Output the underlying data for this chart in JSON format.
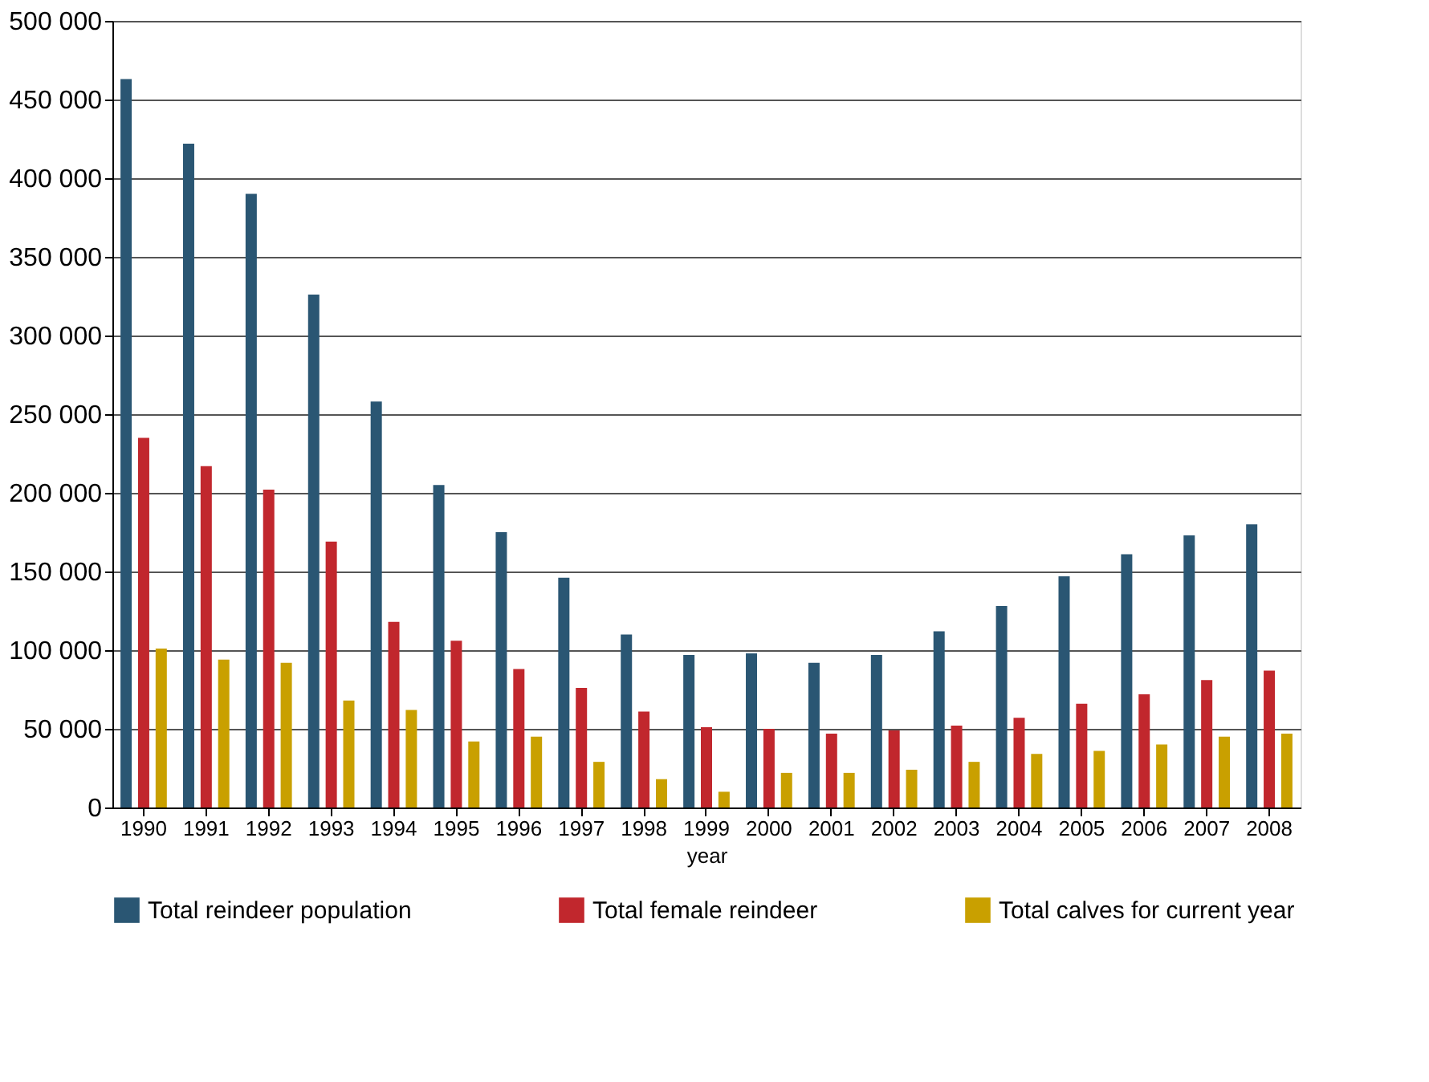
{
  "chart_data": {
    "type": "bar",
    "xlabel": "year",
    "categories": [
      "1990",
      "1991",
      "1992",
      "1993",
      "1994",
      "1995",
      "1996",
      "1997",
      "1998",
      "1999",
      "2000",
      "2001",
      "2002",
      "2003",
      "2004",
      "2005",
      "2006",
      "2007",
      "2008"
    ],
    "series": [
      {
        "name": "Total reindeer population",
        "color": "#2a5673",
        "values": [
          463000,
          422000,
          390000,
          326000,
          258000,
          205000,
          175000,
          146000,
          110000,
          97000,
          98000,
          92000,
          97000,
          112000,
          128000,
          147000,
          161000,
          173000,
          180000
        ]
      },
      {
        "name": "Total female reindeer",
        "color": "#c1272d",
        "values": [
          235000,
          217000,
          202000,
          169000,
          118000,
          106000,
          88000,
          76000,
          61000,
          51000,
          50000,
          47000,
          49000,
          52000,
          57000,
          66000,
          72000,
          81000,
          87000
        ]
      },
      {
        "name": "Total calves for current year",
        "color": "#c9a000",
        "values": [
          101000,
          94000,
          92000,
          68000,
          62000,
          42000,
          45000,
          29000,
          18000,
          10000,
          22000,
          22000,
          24000,
          29000,
          34000,
          36000,
          40000,
          45000,
          47000
        ]
      }
    ],
    "ylim": [
      0,
      500000
    ],
    "yticks": [
      {
        "value": 0,
        "label": "0"
      },
      {
        "value": 50000,
        "label": "50 000"
      },
      {
        "value": 100000,
        "label": "100 000"
      },
      {
        "value": 150000,
        "label": "150 000"
      },
      {
        "value": 200000,
        "label": "200 000"
      },
      {
        "value": 250000,
        "label": "250 000"
      },
      {
        "value": 300000,
        "label": "300 000"
      },
      {
        "value": 350000,
        "label": "350 000"
      },
      {
        "value": 400000,
        "label": "400 000"
      },
      {
        "value": 450000,
        "label": "450 000"
      },
      {
        "value": 500000,
        "label": "500 000"
      }
    ],
    "grid": "y",
    "legend": "bottom"
  }
}
